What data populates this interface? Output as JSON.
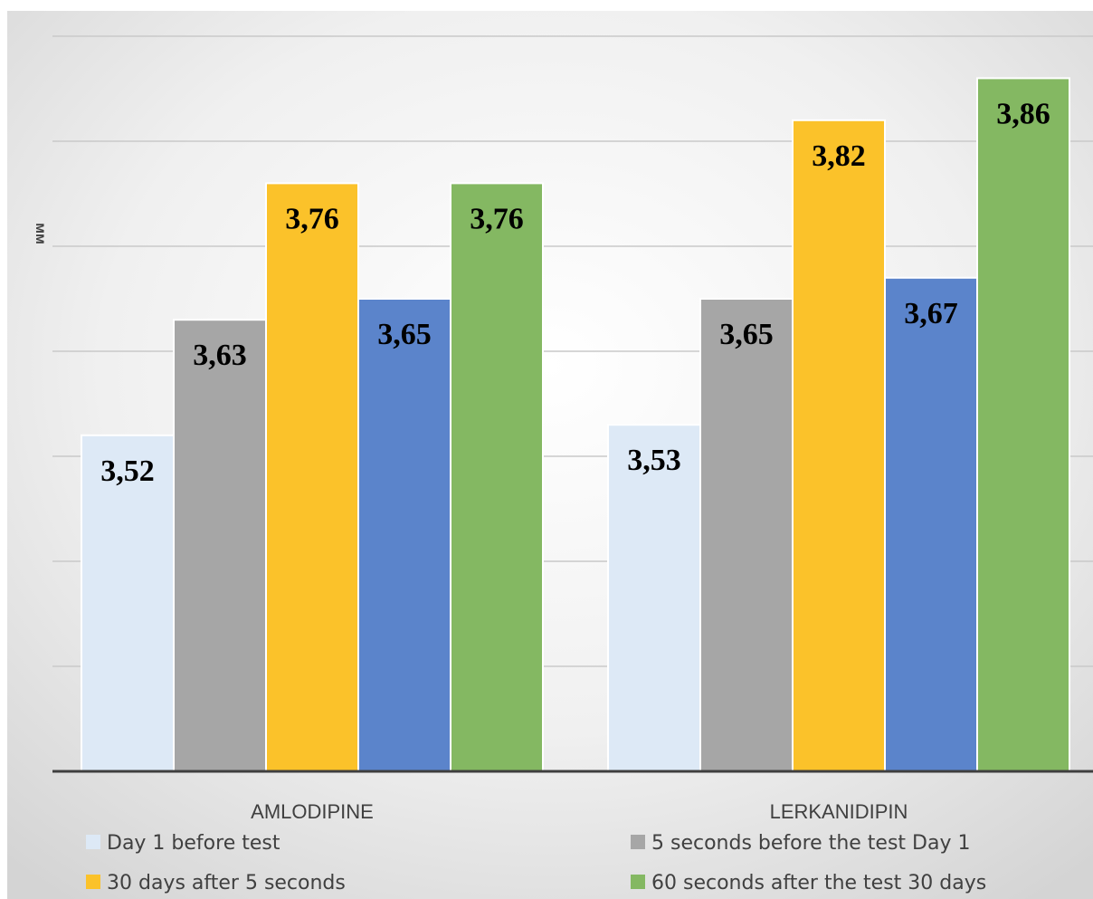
{
  "chart_data": {
    "type": "bar",
    "title": "",
    "xlabel": "",
    "ylabel": "мм",
    "ylim": [
      3.2,
      3.9
    ],
    "grid": true,
    "legend_position": "bottom",
    "categories": [
      "AMLODIPINE",
      "LERKANIDIPIN"
    ],
    "series": [
      {
        "name": "Day 1 before test",
        "color": "#dde9f6",
        "values": [
          3.52,
          3.53
        ],
        "labels": [
          "3,52",
          "3,53"
        ]
      },
      {
        "name": "5 seconds before the test Day 1",
        "color": "#a6a6a6",
        "values": [
          3.63,
          3.65
        ],
        "labels": [
          "3,63",
          "3,65"
        ]
      },
      {
        "name": "30 days after 5 seconds",
        "color": "#fbc22a",
        "values": [
          3.76,
          3.82
        ],
        "labels": [
          "3,76",
          "3,82"
        ]
      },
      {
        "name": "",
        "color": "#5b84cb",
        "values": [
          3.65,
          3.67
        ],
        "labels": [
          "3,65",
          "3,67"
        ]
      },
      {
        "name": "60 seconds after the test 30 days",
        "color": "#84b862",
        "values": [
          3.76,
          3.86
        ],
        "labels": [
          "3,76",
          "3,86"
        ]
      }
    ]
  }
}
